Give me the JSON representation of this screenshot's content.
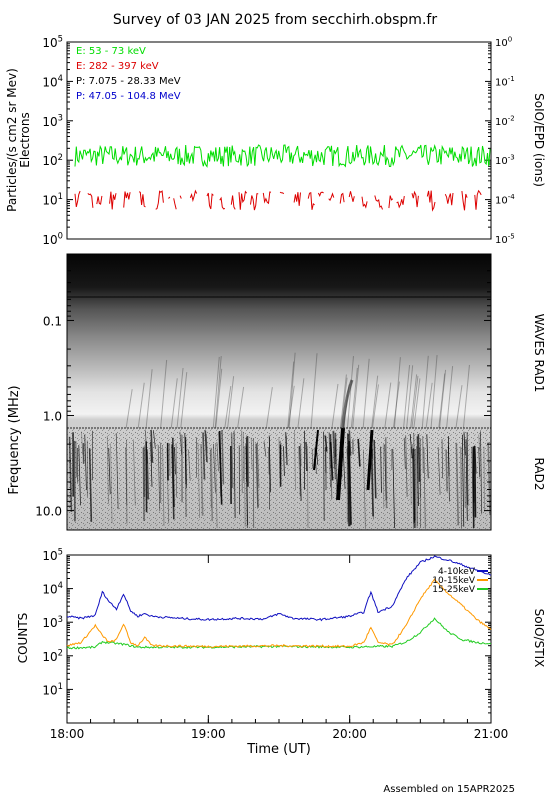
{
  "title": "Survey of 03 JAN 2025 from secchirh.obspm.fr",
  "footer": "Assembled on 15APR2025",
  "chart_data": [
    {
      "panel": "SoIO/EPD (ions)",
      "type": "line",
      "ylabel": "Particles/(s cm2 sr Mev)",
      "ylabel2": "Electrons",
      "right_label": "SoIO/EPD (ions)",
      "yscale": "log",
      "ylim": [
        1,
        100000
      ],
      "ylim_right": [
        1e-05,
        1
      ],
      "y_ticks": [
        "10^0",
        "10^1",
        "10^2",
        "10^3",
        "10^4",
        "10^5"
      ],
      "y_ticks_right": [
        "10^-5",
        "10^-4",
        "10^-3",
        "10^-2",
        "10^-1",
        "10^0"
      ],
      "legend": [
        {
          "text": "E: 53 - 73 keV",
          "color": "#00dd00"
        },
        {
          "text": "E: 282 - 397 keV",
          "color": "#dd0000"
        },
        {
          "text": "P: 7.075 - 28.33 MeV",
          "color": "#000000"
        },
        {
          "text": "P: 47.05 - 104.8 MeV",
          "color": "#0000cc"
        }
      ],
      "series": [
        {
          "name": "E: 53 - 73 keV",
          "color": "#00dd00",
          "typical": 130,
          "range": [
            60,
            300
          ]
        },
        {
          "name": "E: 282 - 397 keV",
          "color": "#dd0000",
          "typical": 8,
          "range": [
            5,
            17
          ]
        }
      ]
    },
    {
      "panel": "WAVES RAD1 / RAD2",
      "type": "heatmap",
      "ylabel": "Frequency (MHz)",
      "right_labels": [
        "WAVES RAD1",
        "RAD2"
      ],
      "yscale": "log",
      "ylim": [
        16,
        0.02
      ],
      "y_ticks": [
        "0.1",
        "1.0",
        "10.0"
      ]
    },
    {
      "panel": "SoIO/STIX",
      "type": "line",
      "ylabel": "COUNTS",
      "right_label": "SoIO/STIX",
      "xlabel": "Time (UT)",
      "x_ticks": [
        "18:00",
        "19:00",
        "20:00",
        "21:00"
      ],
      "xlim": [
        "18:00",
        "21:00"
      ],
      "yscale": "log",
      "ylim": [
        1,
        100000
      ],
      "y_ticks": [
        "10^1",
        "10^2",
        "10^3",
        "10^4",
        "10^5"
      ],
      "legend": [
        {
          "text": "4-10keV",
          "color": "#1010c0"
        },
        {
          "text": "10-15keV",
          "color": "#ff9900"
        },
        {
          "text": "15-25keV",
          "color": "#22cc22"
        }
      ],
      "series": [
        {
          "name": "4-10keV",
          "color": "#1010c0",
          "x_hours": [
            0,
            0.1,
            0.2,
            0.25,
            0.3,
            0.35,
            0.4,
            0.45,
            0.5,
            0.55,
            0.6,
            0.8,
            1.0,
            1.2,
            1.4,
            1.5,
            1.6,
            1.8,
            2.0,
            2.1,
            2.15,
            2.2,
            2.3,
            2.4,
            2.5,
            2.6,
            2.7,
            2.8,
            2.9,
            3.0
          ],
          "values": [
            1500,
            1300,
            1600,
            8000,
            4000,
            2500,
            7000,
            2200,
            1500,
            1800,
            1500,
            1300,
            1200,
            1300,
            1250,
            1800,
            1300,
            1200,
            1500,
            2000,
            8000,
            2000,
            3000,
            20000,
            60000,
            90000,
            70000,
            50000,
            35000,
            25000
          ]
        },
        {
          "name": "10-15keV",
          "color": "#ff9900",
          "x_hours": [
            0,
            0.1,
            0.2,
            0.25,
            0.3,
            0.35,
            0.4,
            0.45,
            0.5,
            0.55,
            0.6,
            1.0,
            1.5,
            2.0,
            2.1,
            2.15,
            2.2,
            2.3,
            2.4,
            2.5,
            2.6,
            2.7,
            2.8,
            2.9,
            3.0
          ],
          "values": [
            200,
            250,
            800,
            400,
            250,
            300,
            900,
            250,
            200,
            350,
            200,
            190,
            200,
            190,
            250,
            700,
            250,
            210,
            800,
            5000,
            18000,
            7000,
            3000,
            1200,
            600
          ]
        },
        {
          "name": "15-25keV",
          "color": "#22cc22",
          "x_hours": [
            0,
            0.2,
            0.25,
            0.4,
            0.5,
            1.0,
            1.5,
            2.0,
            2.2,
            2.3,
            2.4,
            2.5,
            2.6,
            2.7,
            2.8,
            2.9,
            3.0
          ],
          "values": [
            170,
            180,
            260,
            220,
            180,
            180,
            190,
            180,
            190,
            190,
            260,
            500,
            1300,
            500,
            300,
            250,
            230
          ]
        }
      ]
    }
  ]
}
